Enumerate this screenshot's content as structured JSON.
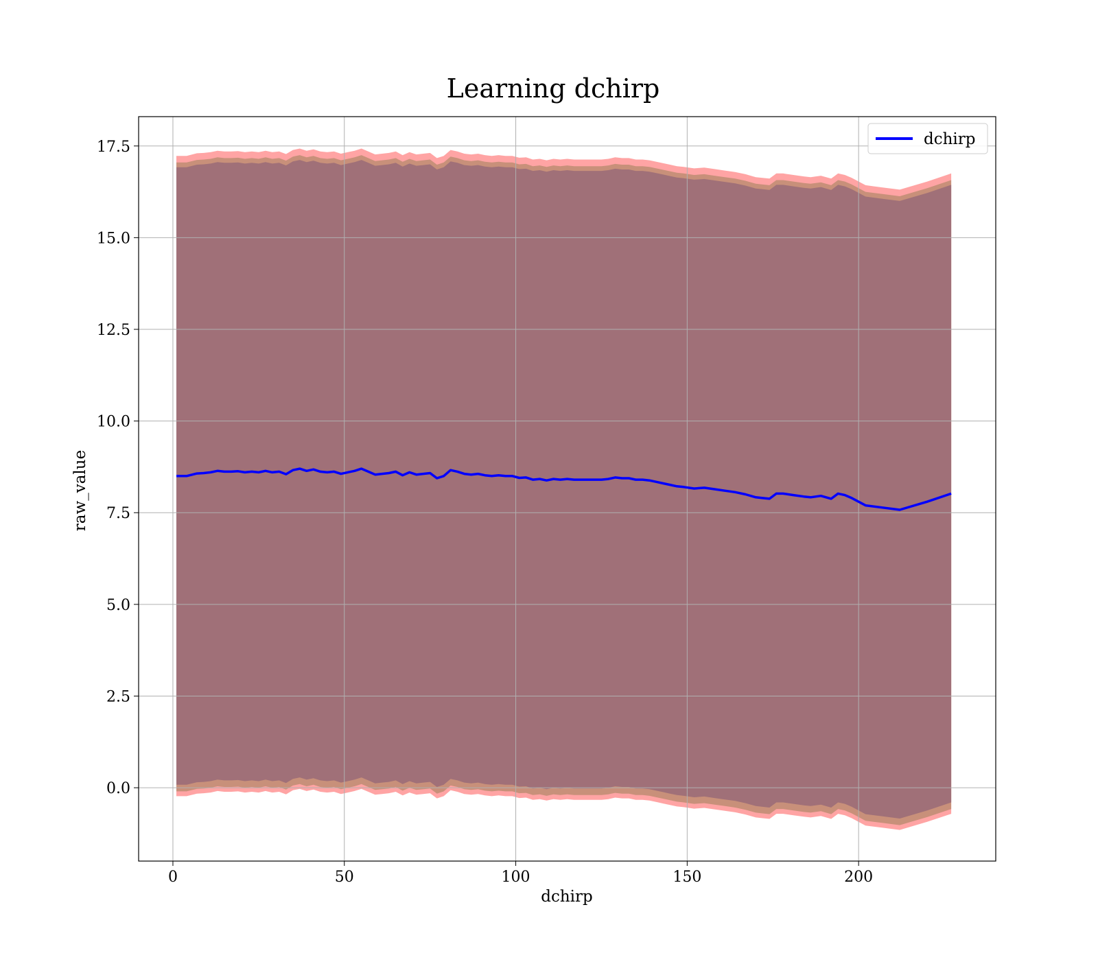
{
  "chart_data": {
    "type": "line",
    "title": "Learning dchirp",
    "xlabel": "dchirp",
    "ylabel": "raw_value",
    "xlim": [
      -10,
      240
    ],
    "ylim": [
      -2,
      18.3
    ],
    "xticks": [
      0,
      50,
      100,
      150,
      200
    ],
    "yticks": [
      0.0,
      2.5,
      5.0,
      7.5,
      10.0,
      12.5,
      15.0,
      17.5
    ],
    "xtick_labels": [
      "0",
      "50",
      "100",
      "150",
      "200"
    ],
    "ytick_labels": [
      "0.0",
      "2.5",
      "5.0",
      "7.5",
      "10.0",
      "12.5",
      "15.0",
      "17.5"
    ],
    "grid": true,
    "legend_position": "top-right",
    "colors": {
      "line": "#0000ff",
      "band_outer": "#ff9a9a",
      "band_middle": "#c8907a",
      "band_inner": "#a07078",
      "grid": "#b0b0b0"
    },
    "series": [
      {
        "name": "dchirp",
        "x": [
          1,
          4,
          7,
          9,
          11,
          13,
          15,
          17,
          19,
          21,
          23,
          25,
          27,
          29,
          31,
          33,
          35,
          37,
          39,
          41,
          43,
          45,
          47,
          49,
          51,
          53,
          55,
          57,
          59,
          61,
          63,
          65,
          67,
          69,
          71,
          73,
          75,
          77,
          79,
          81,
          83,
          85,
          87,
          89,
          91,
          93,
          95,
          97,
          99,
          101,
          103,
          105,
          107,
          109,
          111,
          113,
          115,
          117,
          119,
          121,
          123,
          125,
          127,
          129,
          131,
          133,
          135,
          137,
          139,
          141,
          143,
          145,
          147,
          149,
          152,
          155,
          158,
          161,
          164,
          167,
          170,
          172,
          174,
          176,
          178,
          181,
          184,
          186,
          189,
          192,
          194,
          196,
          198,
          202,
          207,
          212,
          220,
          227
        ],
        "values": [
          8.5,
          8.5,
          8.57,
          8.58,
          8.6,
          8.64,
          8.62,
          8.62,
          8.63,
          8.6,
          8.62,
          8.6,
          8.64,
          8.6,
          8.62,
          8.55,
          8.66,
          8.7,
          8.64,
          8.68,
          8.62,
          8.6,
          8.62,
          8.56,
          8.6,
          8.64,
          8.7,
          8.62,
          8.54,
          8.56,
          8.58,
          8.62,
          8.52,
          8.6,
          8.54,
          8.56,
          8.58,
          8.44,
          8.5,
          8.66,
          8.62,
          8.56,
          8.54,
          8.56,
          8.52,
          8.5,
          8.52,
          8.5,
          8.5,
          8.45,
          8.46,
          8.4,
          8.42,
          8.38,
          8.42,
          8.4,
          8.42,
          8.4,
          8.4,
          8.4,
          8.4,
          8.4,
          8.42,
          8.46,
          8.44,
          8.44,
          8.4,
          8.4,
          8.38,
          8.34,
          8.3,
          8.26,
          8.22,
          8.2,
          8.16,
          8.18,
          8.14,
          8.1,
          8.06,
          8.0,
          7.92,
          7.9,
          7.88,
          8.02,
          8.02,
          7.98,
          7.94,
          7.92,
          7.96,
          7.88,
          8.02,
          7.98,
          7.9,
          7.7,
          7.64,
          7.58,
          7.8,
          8.02
        ]
      }
    ]
  }
}
